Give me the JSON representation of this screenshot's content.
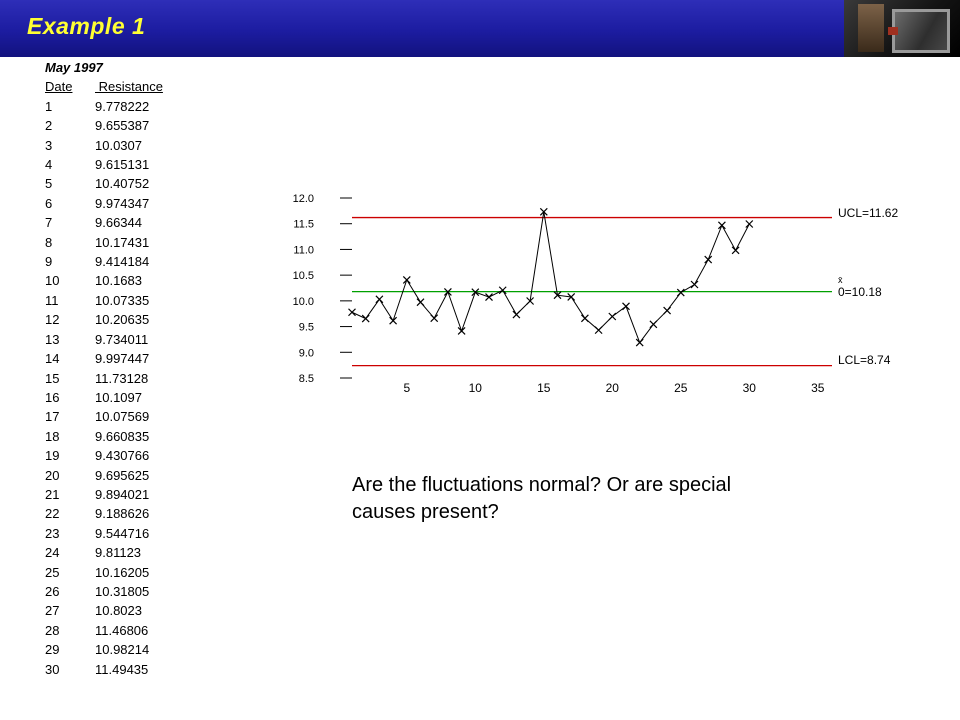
{
  "header": {
    "title": "Example 1"
  },
  "table": {
    "subtitle": "May 1997",
    "col_date": "Date",
    "col_resistance": " Resistance",
    "rows": [
      [
        "1",
        "9.778222"
      ],
      [
        "2",
        "9.655387"
      ],
      [
        "3",
        "10.0307"
      ],
      [
        "4",
        "9.615131"
      ],
      [
        "5",
        "10.40752"
      ],
      [
        "6",
        "9.974347"
      ],
      [
        "7",
        "9.66344"
      ],
      [
        "8",
        "10.17431"
      ],
      [
        "9",
        "9.414184"
      ],
      [
        "10",
        "10.1683"
      ],
      [
        "11",
        "10.07335"
      ],
      [
        "12",
        "10.20635"
      ],
      [
        "13",
        "9.734011"
      ],
      [
        "14",
        "9.997447"
      ],
      [
        "15",
        "11.73128"
      ],
      [
        "16",
        "10.1097"
      ],
      [
        "17",
        "10.07569"
      ],
      [
        "18",
        "9.660835"
      ],
      [
        "19",
        "9.430766"
      ],
      [
        "20",
        "9.695625"
      ],
      [
        "21",
        "9.894021"
      ],
      [
        "22",
        "9.188626"
      ],
      [
        "23",
        "9.544716"
      ],
      [
        "24",
        "9.81123"
      ],
      [
        "25",
        "10.16205"
      ],
      [
        "26",
        "10.31805"
      ],
      [
        "27",
        "10.8023"
      ],
      [
        "28",
        "11.46806"
      ],
      [
        "29",
        "10.98214"
      ],
      [
        "30",
        "11.49435"
      ]
    ]
  },
  "chart_data": {
    "type": "line",
    "x": [
      1,
      2,
      3,
      4,
      5,
      6,
      7,
      8,
      9,
      10,
      11,
      12,
      13,
      14,
      15,
      16,
      17,
      18,
      19,
      20,
      21,
      22,
      23,
      24,
      25,
      26,
      27,
      28,
      29,
      30
    ],
    "values": [
      9.778222,
      9.655387,
      10.0307,
      9.615131,
      10.40752,
      9.974347,
      9.66344,
      10.17431,
      9.414184,
      10.1683,
      10.07335,
      10.20635,
      9.734011,
      9.997447,
      11.73128,
      10.1097,
      10.07569,
      9.660835,
      9.430766,
      9.695625,
      9.894021,
      9.188626,
      9.544716,
      9.81123,
      10.16205,
      10.31805,
      10.8023,
      11.46806,
      10.98214,
      11.49435
    ],
    "ylim": [
      8.5,
      12.0
    ],
    "yticks": [
      "12.0",
      "11.5",
      "11.0",
      "10.5",
      "10.0",
      "9.5",
      "9.0",
      "8.5"
    ],
    "xticks": [
      5,
      10,
      15,
      20,
      25,
      30,
      35
    ],
    "ucl": 11.62,
    "center": 10.18,
    "lcl": 8.74,
    "labels": {
      "ucl": "UCL=11.62",
      "center_sup": "x̄",
      "center": "0=10.18",
      "lcl": "LCL=8.74"
    },
    "colors": {
      "limit_line": "#cc0000",
      "center_line": "#00a000",
      "series": "#000000"
    },
    "marker": "x",
    "grid": false,
    "legend": "none"
  },
  "question": {
    "line1": "Are the fluctuations normal? Or are special",
    "line2": "causes present?"
  }
}
